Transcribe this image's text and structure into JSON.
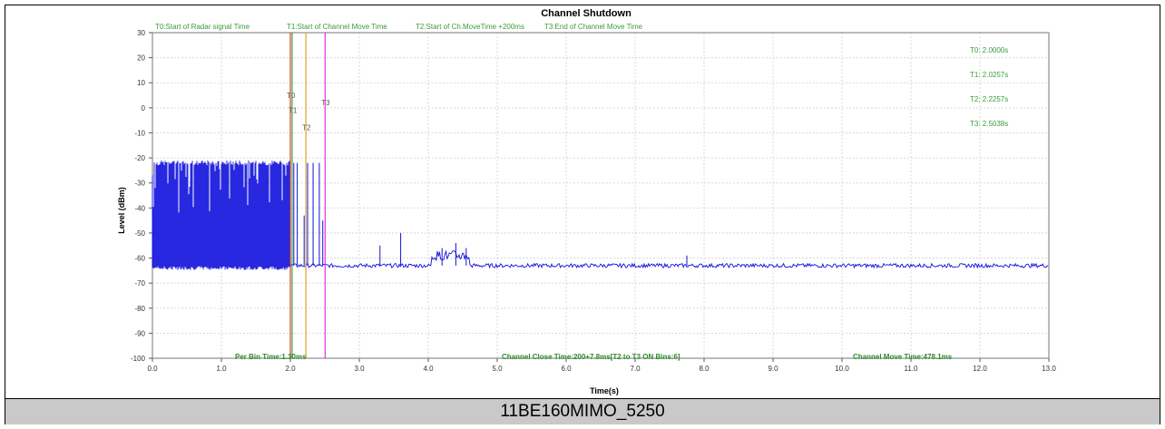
{
  "caption": "11BE160MIMO_5250",
  "chart_data": {
    "type": "line",
    "title": "Channel Shutdown",
    "xlabel": "Time(s)",
    "ylabel": "Level (dBm)",
    "xlim": [
      0,
      13
    ],
    "ylim": [
      -100,
      30
    ],
    "x_ticks": [
      "0.0",
      "1.0",
      "2.0",
      "3.0",
      "4.0",
      "5.0",
      "6.0",
      "7.0",
      "8.0",
      "9.0",
      "10.0",
      "11.0",
      "12.0",
      "13.0"
    ],
    "y_ticks": [
      "30",
      "20",
      "10",
      "0",
      "-10",
      "-20",
      "-30",
      "-40",
      "-50",
      "-60",
      "-70",
      "-80",
      "-90",
      "-100"
    ],
    "grid": true,
    "series": [
      {
        "color": "#1010dd",
        "segments": [
          {
            "x_start": 0.0,
            "x_end": 2.0,
            "pattern": "pulsed",
            "high": -22,
            "low": -64
          },
          {
            "x_start": 2.0,
            "x_end": 13.0,
            "pattern": "noise_floor",
            "level": -63
          }
        ],
        "spikes": [
          {
            "x": 2.0,
            "y": -22
          },
          {
            "x": 2.05,
            "y": -22
          },
          {
            "x": 2.1,
            "y": -22
          },
          {
            "x": 2.2,
            "y": -43
          },
          {
            "x": 2.25,
            "y": -22
          },
          {
            "x": 2.33,
            "y": -22
          },
          {
            "x": 2.42,
            "y": -22
          },
          {
            "x": 2.47,
            "y": -45
          },
          {
            "x": 3.3,
            "y": -55
          },
          {
            "x": 3.6,
            "y": -50
          },
          {
            "x": 4.2,
            "y": -56
          },
          {
            "x": 4.4,
            "y": -54
          },
          {
            "x": 4.55,
            "y": -56
          },
          {
            "x": 7.75,
            "y": -59
          }
        ]
      }
    ],
    "markers": [
      {
        "label": "T0",
        "x": 2.0,
        "color": "#e0301e",
        "top_legend": "T0:Start of Radar signal Time",
        "value": "T0: 2.0000s",
        "label_y": 4
      },
      {
        "label": "T1",
        "x": 2.0257,
        "color": "#2ca02c",
        "top_legend": "T1:Start of Channel Move Time",
        "value": "T1: 2.0257s",
        "label_y": -2
      },
      {
        "label": "T2",
        "x": 2.2257,
        "color": "#d4a017",
        "top_legend": "T2:Start of Ch.MoveTime +200ms",
        "value": "T2: 2.2257s",
        "label_y": -9
      },
      {
        "label": "T3",
        "x": 2.5038,
        "color": "#e020e0",
        "top_legend": "T3:End of Channel Move Time",
        "value": "T3: 2.5038s",
        "label_y": 1
      }
    ],
    "bottom_stats": {
      "per_bin": "Per Bin Time:1.30ms",
      "close_time": "Channel Close Time:200+7.8ms[T2 to T3 ON Bins:6]",
      "move_time": "Channel Move Time:478.1ms"
    }
  }
}
